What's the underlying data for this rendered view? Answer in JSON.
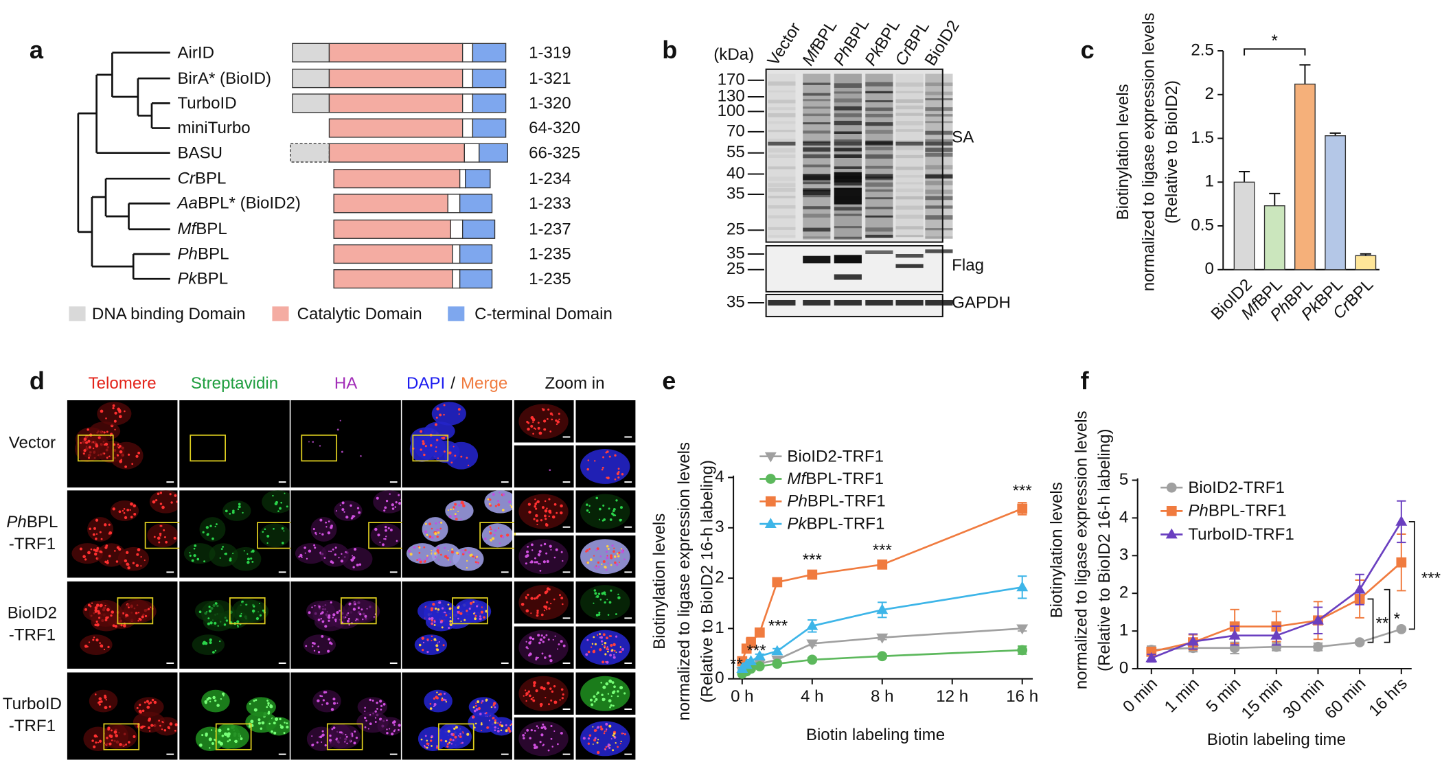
{
  "panel_labels": [
    "a",
    "b",
    "c",
    "d",
    "e",
    "f"
  ],
  "panel_a": {
    "rows": [
      {
        "name": "AirID",
        "range": "1-319"
      },
      {
        "name": "BirA* (BioID)",
        "range": "1-321"
      },
      {
        "name": "TurboID",
        "range": "1-320"
      },
      {
        "name": "miniTurbo",
        "range": "64-320"
      },
      {
        "name": "BASU",
        "range": "66-325"
      },
      {
        "name": {
          "italic": "Cr",
          "text": "BPL"
        },
        "range": "1-234",
        "color": "#c00000"
      },
      {
        "name": {
          "italic": "Aa",
          "text": "BPL* (BioID2)"
        },
        "range": "1-233"
      },
      {
        "name": {
          "italic": "Mf",
          "text": "BPL"
        },
        "range": "1-237",
        "color": "#c00000"
      },
      {
        "name": {
          "italic": "Ph",
          "text": "BPL"
        },
        "range": "1-235",
        "color": "#c00000"
      },
      {
        "name": {
          "italic": "Pk",
          "text": "BPL"
        },
        "range": "1-235",
        "color": "#c00000"
      }
    ],
    "legend": [
      {
        "label": "DNA binding Domain",
        "color": "#d9d9d9"
      },
      {
        "label": "Catalytic Domain",
        "color": "#f4aca2"
      },
      {
        "label": "C-terminal Domain",
        "color": "#7ea7ee"
      }
    ]
  },
  "panel_b": {
    "unit": "(kDa)",
    "lanes": [
      "Vector",
      {
        "italic": "Mf",
        "text": "BPL"
      },
      {
        "italic": "Ph",
        "text": "BPL"
      },
      {
        "italic": "Pk",
        "text": "BPL"
      },
      {
        "italic": "Cr",
        "text": "BPL"
      },
      "BioID2"
    ],
    "blots": [
      {
        "label": "SA",
        "markers": [
          170,
          130,
          100,
          70,
          55,
          40,
          35,
          25
        ]
      },
      {
        "label": "Flag",
        "markers": [
          35,
          25
        ]
      },
      {
        "label": "GAPDH",
        "markers": [
          35
        ]
      }
    ]
  },
  "panel_d": {
    "columns": [
      [
        {
          "text": "Telomere",
          "color": "#e3241b"
        }
      ],
      [
        {
          "text": "Streptavidin",
          "color": "#1f9e3f"
        }
      ],
      [
        {
          "text": "HA",
          "color": "#a22db8"
        }
      ],
      [
        {
          "text": "DAPI",
          "color": "#1b1bf0"
        },
        "/",
        {
          "text": "Merge",
          "color": "#f07b3f"
        }
      ],
      [
        "Zoom in"
      ]
    ],
    "rows": [
      [
        "Vector"
      ],
      [
        {
          "italic": "Ph",
          "text": "BPL"
        },
        "-TRF1"
      ],
      [
        "BioID2",
        "-TRF1"
      ],
      [
        "TurboID",
        "-TRF1"
      ]
    ]
  },
  "chart_data": [
    {
      "type": "bar",
      "ylabel": [
        "Biotinylation levels",
        "normalized to ligase expression levels",
        "(Relative to BioID2)"
      ],
      "categories": [
        "BioID2",
        {
          "italic": "Mf",
          "text": "BPL"
        },
        {
          "italic": "Ph",
          "text": "BPL"
        },
        {
          "italic": "Pk",
          "text": "BPL"
        },
        {
          "italic": "Cr",
          "text": "BPL"
        }
      ],
      "values": [
        1.0,
        0.73,
        2.12,
        1.53,
        0.16
      ],
      "errors": [
        0.12,
        0.14,
        0.22,
        0.03,
        0.02
      ],
      "colors": [
        "#d9d9d9",
        "#cbe6bd",
        "#f5b07a",
        "#b4c7e7",
        "#ffe699"
      ],
      "ylim": [
        0,
        2.5
      ],
      "yticks": [
        0,
        0.5,
        1,
        1.5,
        2,
        2.5
      ],
      "annotation": "*"
    },
    {
      "type": "line",
      "ylabel": [
        "Biotinylation levels",
        "normalized to ligase expression levels",
        "(Relative to BioID2 16-h labeling)"
      ],
      "xlabel": "Biotin labeling time",
      "x": [
        0,
        0.25,
        0.5,
        1,
        2,
        4,
        8,
        16
      ],
      "xlim": [
        -0.5,
        16.6
      ],
      "xticks": [
        {
          "value": 0,
          "label": "0 h"
        },
        {
          "value": 4,
          "label": "4 h"
        },
        {
          "value": 8,
          "label": "8 h"
        },
        {
          "value": 12,
          "label": "12 h"
        },
        {
          "value": 16,
          "label": "16 h"
        }
      ],
      "ylim": [
        0,
        4
      ],
      "yticks": [
        0,
        1,
        2,
        3,
        4
      ],
      "legend": "upper left",
      "series": [
        {
          "name": "BioID2-TRF1",
          "color": "#a0a0a0",
          "marker": "triangle-down",
          "values": [
            0.15,
            0.2,
            0.25,
            0.3,
            0.38,
            0.7,
            0.82,
            1.0
          ],
          "errors": [
            0.02,
            0.02,
            0.02,
            0.03,
            0.03,
            0.04,
            0.04,
            0.05
          ]
        },
        {
          "name": {
            "italic": "Mf",
            "text": "BPL-TRF1"
          },
          "color": "#5cb85c",
          "marker": "circle",
          "values": [
            0.1,
            0.15,
            0.2,
            0.25,
            0.3,
            0.38,
            0.45,
            0.57
          ],
          "errors": [
            0.02,
            0.02,
            0.02,
            0.02,
            0.03,
            0.04,
            0.04,
            0.08
          ]
        },
        {
          "name": {
            "italic": "Ph",
            "text": "BPL-TRF1"
          },
          "color": "#f07b3f",
          "marker": "square",
          "values": [
            0.35,
            0.6,
            0.72,
            0.92,
            1.92,
            2.07,
            2.27,
            3.38
          ],
          "errors": [
            0.05,
            0.08,
            0.1,
            0.06,
            0.05,
            0.06,
            0.05,
            0.12
          ],
          "significance": [
            null,
            "**",
            "***",
            "***",
            null,
            "***",
            "***",
            "***"
          ]
        },
        {
          "name": {
            "italic": "Pk",
            "text": "BPL-TRF1"
          },
          "color": "#3db5e8",
          "marker": "triangle-up",
          "values": [
            0.2,
            0.28,
            0.35,
            0.45,
            0.55,
            1.05,
            1.37,
            1.82
          ],
          "errors": [
            0.03,
            0.03,
            0.03,
            0.04,
            0.05,
            0.12,
            0.15,
            0.22
          ]
        }
      ]
    },
    {
      "type": "line",
      "ylabel": [
        "Biotinylation levels",
        "normalized to ligase expression levels",
        "(Relative to BioID2 16-h labeling)"
      ],
      "xlabel": "Biotin labeling time",
      "categories": [
        "0 min",
        "1 min",
        "5 min",
        "15 min",
        "30 min",
        "60 min",
        "16 hrs"
      ],
      "ylim": [
        0,
        5
      ],
      "yticks": [
        0,
        1,
        2,
        3,
        4,
        5
      ],
      "legend": "upper left",
      "series": [
        {
          "name": "BioID2-TRF1",
          "color": "#a0a0a0",
          "marker": "circle",
          "values": [
            0.5,
            0.55,
            0.55,
            0.58,
            0.58,
            0.7,
            1.05
          ],
          "errors": [
            0.1,
            0.1,
            0.15,
            0.1,
            0.1,
            0.05,
            0.05
          ]
        },
        {
          "name": {
            "italic": "Ph",
            "text": "BPL-TRF1"
          },
          "color": "#f07b3f",
          "marker": "square",
          "values": [
            0.45,
            0.7,
            1.12,
            1.12,
            1.28,
            1.85,
            2.82
          ],
          "errors": [
            0.1,
            0.2,
            0.45,
            0.4,
            0.5,
            0.5,
            0.75
          ]
        },
        {
          "name": "TurboID-TRF1",
          "color": "#6a3fc0",
          "marker": "triangle-up",
          "values": [
            0.28,
            0.72,
            0.88,
            0.88,
            1.28,
            2.1,
            3.9
          ],
          "errors": [
            0.1,
            0.2,
            0.25,
            0.25,
            0.35,
            0.4,
            0.55
          ]
        }
      ],
      "comparisons": [
        {
          "label": "**",
          "color": "#f07b3f"
        },
        {
          "label": "*",
          "color": "#6a3fc0"
        },
        {
          "label": "***",
          "color": "#6a3fc0"
        }
      ]
    }
  ]
}
